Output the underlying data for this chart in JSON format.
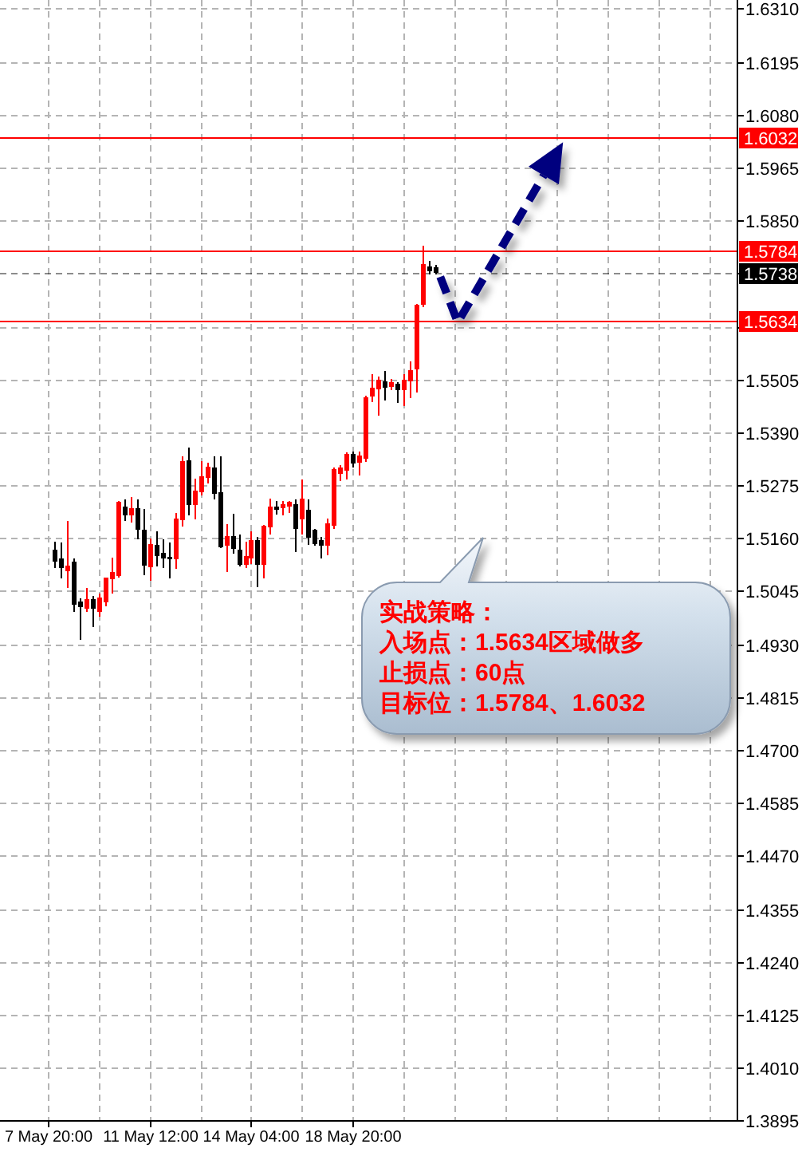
{
  "chart_data": {
    "type": "candlestick",
    "categories": [
      null,
      null,
      null,
      null,
      null,
      null,
      null,
      "7 May 20:00",
      null,
      null,
      null,
      null,
      null,
      null,
      null,
      null,
      null,
      null,
      null,
      null,
      null,
      null,
      null,
      "11 May 12:00",
      null,
      null,
      null,
      null,
      null,
      null,
      null,
      null,
      null,
      null,
      null,
      null,
      null,
      null,
      null,
      "14 May 04:00",
      null,
      null,
      null,
      null,
      null,
      null,
      null,
      null,
      null,
      null,
      null,
      null,
      null,
      null,
      null,
      "18 May 20:00",
      null,
      null,
      null,
      null,
      null,
      null,
      null,
      null,
      null,
      null,
      null,
      null,
      null,
      null,
      null,
      null,
      null,
      null,
      null,
      null,
      null,
      null,
      null,
      null,
      null,
      null,
      null,
      null,
      null,
      null,
      null,
      null,
      null,
      null,
      null,
      null,
      null,
      null,
      null,
      null,
      null,
      null,
      null,
      null,
      null,
      null,
      null,
      null,
      null,
      null,
      null,
      null,
      null,
      null,
      null,
      null,
      null,
      null,
      null,
      null
    ],
    "ohlc": [
      null,
      null,
      null,
      null,
      null,
      null,
      null,
      null,
      [
        1.5133,
        1.5153,
        1.5095,
        1.511
      ],
      [
        1.5114,
        1.5151,
        1.5072,
        1.5096
      ],
      [
        1.509,
        1.5197,
        1.5052,
        1.5098
      ],
      [
        1.5107,
        1.5116,
        1.5,
        1.5017
      ],
      [
        1.5021,
        1.5029,
        1.4939,
        1.5011
      ],
      [
        1.5009,
        1.5052,
        1.5,
        1.5025
      ],
      [
        1.5025,
        1.5035,
        1.4967,
        1.5009
      ],
      [
        1.5002,
        1.504,
        1.499,
        1.5029
      ],
      [
        1.5023,
        1.5075,
        1.5011,
        1.5072
      ],
      [
        1.5072,
        1.5118,
        1.504,
        1.5084
      ],
      [
        1.5079,
        1.5241,
        1.5075,
        1.5238
      ],
      [
        1.5226,
        1.5244,
        1.5197,
        1.5211
      ],
      [
        1.5211,
        1.5249,
        1.5194,
        1.5223
      ],
      [
        1.5224,
        1.5244,
        1.5157,
        1.518
      ],
      [
        1.5177,
        1.5223,
        1.5079,
        1.5102
      ],
      [
        1.5098,
        1.516,
        1.5067,
        1.5145
      ],
      [
        1.5144,
        1.5174,
        1.5098,
        1.5122
      ],
      [
        1.5127,
        1.5157,
        1.5095,
        1.5118
      ],
      [
        1.5118,
        1.5151,
        1.5073,
        1.5116
      ],
      [
        1.5116,
        1.5215,
        1.5093,
        1.52
      ],
      [
        1.52,
        1.5337,
        1.5186,
        1.5325
      ],
      [
        1.5327,
        1.5356,
        1.5209,
        1.5234
      ],
      [
        1.5234,
        1.529,
        1.52,
        1.5261
      ],
      [
        1.5261,
        1.5327,
        1.5253,
        1.5292
      ],
      [
        1.5292,
        1.5323,
        1.5278,
        1.5313
      ],
      [
        1.5311,
        1.5337,
        1.5244,
        1.5258
      ],
      [
        1.5258,
        1.5337,
        1.5139,
        1.5141
      ],
      [
        1.5145,
        1.5191,
        1.5086,
        1.5162
      ],
      [
        1.5162,
        1.5213,
        1.5127,
        1.5139
      ],
      [
        1.5133,
        1.5168,
        1.5098,
        1.5104
      ],
      [
        1.5104,
        1.5153,
        1.5095,
        1.5119
      ],
      [
        1.5118,
        1.5174,
        1.5104,
        1.5154
      ],
      [
        1.5154,
        1.5162,
        1.5054,
        1.5104
      ],
      [
        1.5104,
        1.5188,
        1.5073,
        1.5186
      ],
      [
        1.5186,
        1.5246,
        1.5168,
        1.5226
      ],
      [
        1.5226,
        1.5241,
        1.5211,
        1.5224
      ],
      [
        1.5226,
        1.5241,
        1.5209,
        1.5232
      ],
      [
        1.523,
        1.5241,
        1.5215,
        1.5238
      ],
      [
        1.5232,
        1.5244,
        1.513,
        1.5182
      ],
      [
        1.5203,
        1.5287,
        1.5168,
        1.5244
      ],
      [
        1.522,
        1.5244,
        1.5145,
        1.5162
      ],
      [
        1.5177,
        1.518,
        1.5143,
        1.5148
      ],
      [
        1.5154,
        1.5162,
        1.5116,
        1.5145
      ],
      [
        1.5145,
        1.5203,
        1.5122,
        1.5191
      ],
      [
        1.5188,
        1.5313,
        1.518,
        1.5308
      ],
      [
        1.5302,
        1.5319,
        1.5284,
        1.5311
      ],
      [
        1.5308,
        1.5346,
        1.5288,
        1.5342
      ],
      [
        1.5342,
        1.5348,
        1.5313,
        1.5323
      ],
      [
        1.5325,
        1.5348,
        1.5296,
        1.5337
      ],
      [
        1.5334,
        1.547,
        1.5325,
        1.5464
      ],
      [
        1.547,
        1.5517,
        1.5455,
        1.5485
      ],
      [
        1.5485,
        1.5511,
        1.5426,
        1.5503
      ],
      [
        1.5499,
        1.5523,
        1.5459,
        1.5488
      ],
      [
        1.5491,
        1.5505,
        1.5482,
        1.5497
      ],
      [
        1.5494,
        1.5499,
        1.5453,
        1.5484
      ],
      [
        1.5484,
        1.5517,
        1.5447,
        1.5503
      ],
      [
        1.5502,
        1.5544,
        1.5464,
        1.5523
      ],
      [
        1.5528,
        1.5668,
        1.5476,
        1.5666
      ],
      [
        1.5668,
        1.5796,
        1.5662,
        1.5753
      ],
      [
        1.5749,
        1.5763,
        1.5732,
        1.5741
      ],
      [
        1.5746,
        1.5753,
        1.5732,
        1.5738
      ],
      null,
      null,
      null,
      null,
      null,
      null,
      null,
      null,
      null,
      null,
      null,
      null,
      null,
      null,
      null,
      null,
      null,
      null,
      null,
      null,
      null,
      null,
      null,
      null,
      null,
      null,
      null,
      null,
      null,
      null,
      null,
      null,
      null,
      null,
      null,
      null,
      null,
      null,
      null,
      null,
      null,
      null,
      null,
      null,
      null,
      null,
      null
    ],
    "colors": [
      null,
      null,
      null,
      null,
      null,
      null,
      null,
      null,
      "#000000",
      "#000000",
      "#ff0000",
      "#000000",
      "#000000",
      "#ff0000",
      "#000000",
      "#ff0000",
      "#ff0000",
      "#ff0000",
      "#ff0000",
      "#000000",
      "#ff0000",
      "#000000",
      "#000000",
      "#ff0000",
      "#000000",
      "#000000",
      "#000000",
      "#ff0000",
      "#ff0000",
      "#000000",
      "#ff0000",
      "#ff0000",
      "#ff0000",
      "#000000",
      "#000000",
      "#ff0000",
      "#000000",
      "#000000",
      "#ff0000",
      "#ff0000",
      "#000000",
      "#ff0000",
      "#ff0000",
      "#000000",
      "#ff0000",
      "#ff0000",
      "#000000",
      "#ff0000",
      "#000000",
      "#000000",
      "#000000",
      "#ff0000",
      "#ff0000",
      "#ff0000",
      "#ff0000",
      "#000000",
      "#ff0000",
      "#ff0000",
      "#ff0000",
      "#ff0000",
      "#000000",
      "#ff0000",
      "#000000",
      "#ff0000",
      "#ff0000",
      "#ff0000",
      "#ff0000",
      "#000000",
      "#000000",
      null,
      null,
      null,
      null,
      null,
      null,
      null,
      null,
      null,
      null,
      null,
      null,
      null,
      null,
      null,
      null,
      null,
      null,
      null,
      null,
      null,
      null,
      null,
      null,
      null,
      null,
      null,
      null,
      null,
      null,
      null,
      null,
      null,
      null,
      null,
      null,
      null,
      null,
      null,
      null,
      null,
      null,
      null,
      null,
      null,
      null,
      null
    ],
    "ylim": [
      1.3894,
      1.6329
    ],
    "yticks": [
      {
        "value": 1.631,
        "label": "1.6310"
      },
      {
        "value": 1.6195,
        "label": "1.6195"
      },
      {
        "value": 1.608,
        "label": "1.6080"
      },
      {
        "value": 1.5965,
        "label": "1.5965"
      },
      {
        "value": 1.585,
        "label": "1.5850"
      },
      {
        "value": 1.5735,
        "label": null
      },
      {
        "value": 1.562,
        "label": null
      },
      {
        "value": 1.5505,
        "label": "1.5505"
      },
      {
        "value": 1.539,
        "label": "1.5390"
      },
      {
        "value": 1.5275,
        "label": "1.5275"
      },
      {
        "value": 1.516,
        "label": "1.5160"
      },
      {
        "value": 1.5045,
        "label": "1.5045"
      },
      {
        "value": 1.493,
        "label": "1.4930"
      },
      {
        "value": 1.4815,
        "label": "1.4815"
      },
      {
        "value": 1.47,
        "label": "1.4700"
      },
      {
        "value": 1.4585,
        "label": "1.4585"
      },
      {
        "value": 1.447,
        "label": "1.4470"
      },
      {
        "value": 1.4355,
        "label": "1.4355"
      },
      {
        "value": 1.424,
        "label": "1.4240"
      },
      {
        "value": 1.4125,
        "label": "1.4125"
      },
      {
        "value": 1.401,
        "label": "1.4010"
      },
      {
        "value": 1.3895,
        "label": "1.3895"
      }
    ],
    "grid": true,
    "ref_lines": [
      {
        "axis": "y",
        "value": 1.6032,
        "label": "1.6032",
        "color": "#ff0000"
      },
      {
        "axis": "y",
        "value": 1.5784,
        "label": "1.5784",
        "color": "#ff0000"
      },
      {
        "axis": "y",
        "value": 1.5738,
        "label": "1.5738",
        "color": "#000000",
        "line_style": "dashed"
      },
      {
        "axis": "y",
        "value": 1.5634,
        "label": "1.5634",
        "color": "#ff0000"
      }
    ],
    "annotations": [
      "实战策略：",
      "入场点：1.5634区域做多",
      "止损点：60点",
      "目标位：1.5784、1.6032"
    ]
  }
}
